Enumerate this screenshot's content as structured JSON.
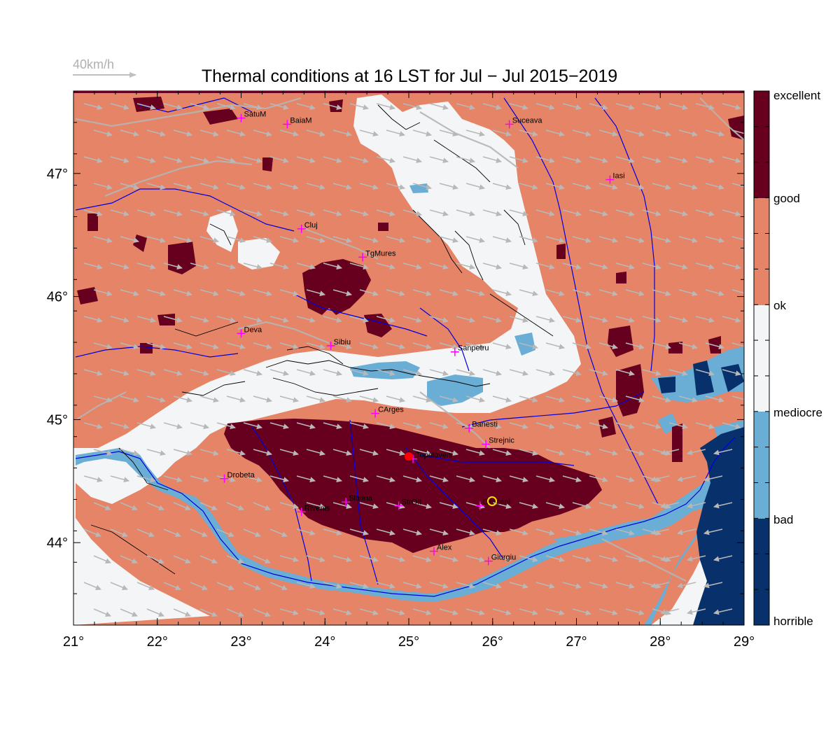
{
  "title": "Thermal conditions at 16 LST for Jul − Jul  2015−2019",
  "wind_scale": {
    "label": "40km/h"
  },
  "colors": {
    "excellent": "#67001f",
    "good": "#e58467",
    "ok": "#f4f5f6",
    "mediocre": "#6aaed6",
    "bad": "#08306b",
    "river": "#0000dd",
    "road": "#b5b5b5",
    "contour": "#000000",
    "arrow": "#b8b8b8",
    "city_marker": "#ff00ff",
    "site_marker": "#ff0000"
  },
  "axes": {
    "lon_range": [
      21,
      29
    ],
    "lat_range": [
      43.33,
      47.67
    ],
    "x_ticks": [
      "21°",
      "22°",
      "23°",
      "24°",
      "25°",
      "26°",
      "27°",
      "28°",
      "29°"
    ],
    "y_ticks": [
      "44°",
      "45°",
      "46°",
      "47°"
    ]
  },
  "legend": {
    "labels": [
      "excellent",
      "good",
      "ok",
      "mediocre",
      "bad",
      "horrible"
    ]
  },
  "cities": [
    {
      "name": "SatuM",
      "lon": 23.0,
      "lat": 47.45
    },
    {
      "name": "BaiaM",
      "lon": 23.55,
      "lat": 47.4
    },
    {
      "name": "Suceava",
      "lon": 26.2,
      "lat": 47.4
    },
    {
      "name": "Iasi",
      "lon": 27.4,
      "lat": 46.95
    },
    {
      "name": "Cluj",
      "lon": 23.72,
      "lat": 46.55
    },
    {
      "name": "TgMures",
      "lon": 24.45,
      "lat": 46.32
    },
    {
      "name": "Deva",
      "lon": 23.0,
      "lat": 45.7
    },
    {
      "name": "Sibiu",
      "lon": 24.07,
      "lat": 45.6
    },
    {
      "name": "Sanpetru",
      "lon": 25.55,
      "lat": 45.55
    },
    {
      "name": "CArges",
      "lon": 24.6,
      "lat": 45.05
    },
    {
      "name": "Banesti",
      "lon": 25.72,
      "lat": 44.93
    },
    {
      "name": "Strejnic",
      "lon": 25.92,
      "lat": 44.8
    },
    {
      "name": "Topoloveni",
      "lon": 25.05,
      "lat": 44.68
    },
    {
      "name": "Drobeta",
      "lon": 22.8,
      "lat": 44.52
    },
    {
      "name": "Slatina",
      "lon": 24.25,
      "lat": 44.33
    },
    {
      "name": "StrOlt",
      "lon": 24.88,
      "lat": 44.3
    },
    {
      "name": "Clinceni",
      "lon": 25.85,
      "lat": 44.3
    },
    {
      "name": "Rtvenis",
      "lon": 23.72,
      "lat": 44.25
    },
    {
      "name": "Alex",
      "lon": 25.3,
      "lat": 43.93
    },
    {
      "name": "Giurgiu",
      "lon": 25.95,
      "lat": 43.85
    }
  ],
  "site": {
    "lon": 25.0,
    "lat": 44.7
  }
}
